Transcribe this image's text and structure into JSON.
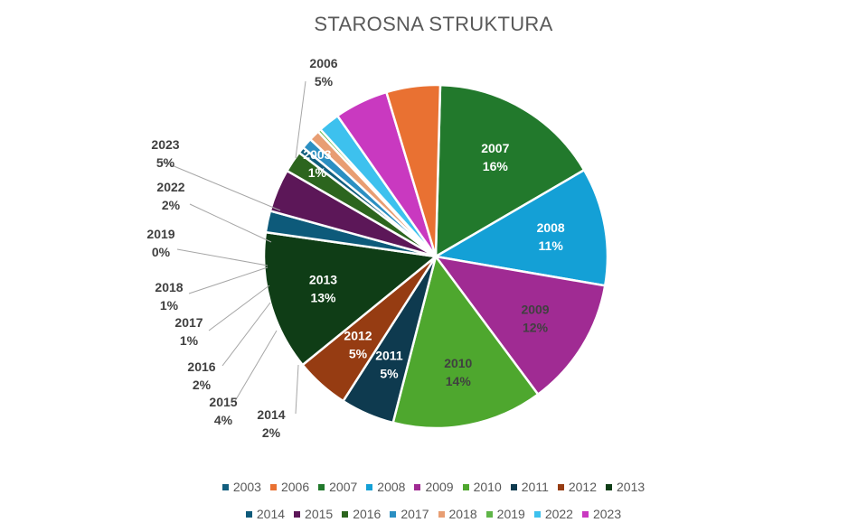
{
  "chart_data": {
    "type": "pie",
    "title": "STAROSNA STRUKTURA",
    "legend": "bottom",
    "slices": [
      {
        "label": "2007",
        "value": 16,
        "percent": "16%",
        "color": "#22792c"
      },
      {
        "label": "2008",
        "value": 11,
        "percent": "11%",
        "color": "#14a0d6"
      },
      {
        "label": "2009",
        "value": 12,
        "percent": "12%",
        "color": "#a02b93"
      },
      {
        "label": "2010",
        "value": 14,
        "percent": "14%",
        "color": "#4ea72e"
      },
      {
        "label": "2011",
        "value": 5,
        "percent": "5%",
        "color": "#0e3a4f"
      },
      {
        "label": "2012",
        "value": 5,
        "percent": "5%",
        "color": "#963c12"
      },
      {
        "label": "2013",
        "value": 13,
        "percent": "13%",
        "color": "#0f3d16"
      },
      {
        "label": "2014",
        "value": 2,
        "percent": "2%",
        "color": "#0d5a7a"
      },
      {
        "label": "2015",
        "value": 4,
        "percent": "4%",
        "color": "#5c1758"
      },
      {
        "label": "2016",
        "value": 2,
        "percent": "2%",
        "color": "#2c651e"
      },
      {
        "label": "2003",
        "value": 0.6,
        "percent": "1%",
        "color": "#125e7e"
      },
      {
        "label": "2017",
        "value": 1,
        "percent": "1%",
        "color": "#2b8fc2"
      },
      {
        "label": "2018",
        "value": 1,
        "percent": "1%",
        "color": "#e89e73"
      },
      {
        "label": "2019",
        "value": 0.3,
        "percent": "0%",
        "color": "#5fb548"
      },
      {
        "label": "2022",
        "value": 2,
        "percent": "2%",
        "color": "#3dc1ee"
      },
      {
        "label": "2023",
        "value": 5,
        "percent": "5%",
        "color": "#c939c0"
      },
      {
        "label": "2006",
        "value": 5,
        "percent": "5%",
        "color": "#e97132"
      }
    ],
    "legend_entries": [
      [
        "2003",
        "2006",
        "2007",
        "2008",
        "2009",
        "2010",
        "2011",
        "2012",
        "2013"
      ],
      [
        "2014",
        "2015",
        "2016",
        "2017",
        "2018",
        "2019",
        "2022",
        "2023"
      ]
    ]
  }
}
